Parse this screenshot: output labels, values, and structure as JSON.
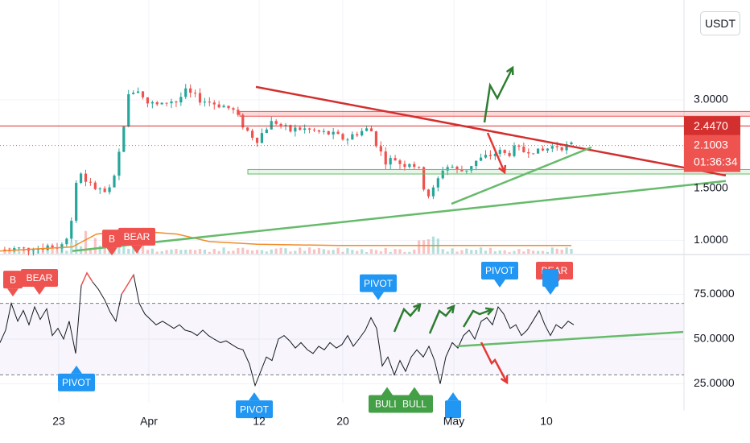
{
  "currency": "USDT",
  "colors": {
    "up": "#26a69a",
    "down": "#ef5350",
    "resistance": "#d32f2f",
    "support": "#66bb6a",
    "ma": "#f28c28",
    "pivot": "#2196f3",
    "bear": "#ef5350",
    "bull": "#43a047",
    "projection_up": "#2e7d32",
    "projection_down": "#e53935"
  },
  "chart_data": [
    {
      "type": "candlestick",
      "panel": "price",
      "y_axis_labels": [
        "3.0000",
        "1.5000",
        "1.0000"
      ],
      "x_axis_labels": [
        "23",
        "Apr",
        "12",
        "20",
        "May",
        "10"
      ],
      "price_tags": [
        {
          "label": "2.4470",
          "value": 2.447
        },
        {
          "label": "2.1003",
          "value": 2.1003,
          "countdown": "01:36:34"
        }
      ],
      "close_path": [
        [
          0.0,
          0.93
        ],
        [
          1.0,
          0.92
        ],
        [
          2.0,
          0.94
        ],
        [
          3.0,
          0.93
        ],
        [
          4.0,
          0.95
        ],
        [
          5.0,
          0.94
        ],
        [
          6.0,
          0.96
        ],
        [
          7.0,
          0.95
        ],
        [
          8.0,
          0.97
        ],
        [
          9.0,
          1.2
        ],
        [
          9.5,
          1.6
        ],
        [
          10.0,
          1.7
        ],
        [
          11.0,
          1.55
        ],
        [
          12.0,
          1.5
        ],
        [
          13.0,
          1.45
        ],
        [
          14.0,
          1.5
        ],
        [
          15.0,
          2.1
        ],
        [
          16.0,
          3.1
        ],
        [
          17.0,
          3.3
        ],
        [
          18.0,
          2.95
        ],
        [
          19.0,
          2.9
        ],
        [
          20.0,
          2.85
        ],
        [
          21.0,
          3.0
        ],
        [
          22.0,
          2.95
        ],
        [
          23.0,
          3.2
        ],
        [
          24.0,
          3.1
        ],
        [
          25.0,
          3.0
        ],
        [
          26.0,
          2.95
        ],
        [
          27.0,
          2.9
        ],
        [
          28.0,
          2.85
        ],
        [
          29.0,
          2.75
        ],
        [
          30.0,
          2.5
        ],
        [
          31.0,
          2.3
        ],
        [
          32.0,
          2.2
        ],
        [
          33.0,
          2.4
        ],
        [
          34.0,
          2.55
        ],
        [
          35.0,
          2.45
        ],
        [
          36.0,
          2.35
        ],
        [
          37.0,
          2.4
        ],
        [
          38.0,
          2.38
        ],
        [
          39.0,
          2.35
        ],
        [
          40.0,
          2.32
        ],
        [
          41.0,
          2.3
        ],
        [
          42.0,
          2.25
        ],
        [
          43.0,
          2.2
        ],
        [
          44.0,
          2.3
        ],
        [
          45.0,
          2.35
        ],
        [
          46.0,
          2.4
        ],
        [
          47.0,
          2.05
        ],
        [
          48.0,
          1.85
        ],
        [
          49.0,
          1.9
        ],
        [
          50.0,
          1.8
        ],
        [
          51.0,
          1.85
        ],
        [
          52.0,
          1.75
        ],
        [
          53.0,
          1.4
        ],
        [
          54.0,
          1.5
        ],
        [
          55.0,
          1.75
        ],
        [
          56.0,
          1.8
        ],
        [
          57.0,
          1.7
        ],
        [
          58.0,
          1.75
        ],
        [
          59.0,
          1.85
        ],
        [
          60.0,
          1.9
        ],
        [
          61.0,
          1.95
        ],
        [
          62.0,
          2.0
        ],
        [
          63.0,
          1.95
        ],
        [
          64.0,
          2.05
        ],
        [
          65.0,
          2.0
        ],
        [
          66.0,
          2.05
        ],
        [
          67.0,
          1.98
        ],
        [
          68.0,
          2.05
        ],
        [
          69.0,
          2.1
        ],
        [
          70.0,
          2.08
        ],
        [
          71.0,
          2.1003
        ]
      ],
      "ma_path": [
        [
          0.0,
          0.92
        ],
        [
          9.0,
          0.95
        ],
        [
          12.0,
          1.05
        ],
        [
          16.0,
          1.08
        ],
        [
          22.0,
          1.05
        ],
        [
          26.0,
          0.99
        ],
        [
          32.0,
          0.97
        ],
        [
          42.0,
          0.96
        ],
        [
          55.0,
          0.96
        ],
        [
          71.0,
          0.96
        ]
      ],
      "zones": [
        {
          "name": "resistance-zone",
          "x1": 29.8,
          "x2": 100.5,
          "y_low": 2.64,
          "y_high": 2.74
        },
        {
          "name": "support-zone",
          "x1": 30.8,
          "x2": 102.5,
          "y_low": 1.68,
          "y_high": 1.74
        }
      ],
      "lines": [
        {
          "name": "descending-trendline",
          "x1": 31.8,
          "y1": 3.32,
          "x2": 90.2,
          "y2": 1.66,
          "color": "resistance"
        },
        {
          "name": "ascending-trendline-long",
          "x1": 9.0,
          "y1": 0.92,
          "x2": 90.2,
          "y2": 1.59,
          "color": "support"
        },
        {
          "name": "ascending-trendline-short",
          "x1": 56.1,
          "y1": 1.33,
          "x2": 73.5,
          "y2": 2.07,
          "color": "support"
        },
        {
          "name": "horizontal-resistance-line",
          "x1": 0.0,
          "y1": 2.447,
          "x2": 101.7,
          "y2": 2.447,
          "color": "resistance"
        }
      ]
    },
    {
      "type": "line",
      "panel": "rsi",
      "y_axis_labels": [
        "75.0000",
        "50.0000",
        "25.0000"
      ],
      "levels": [
        70,
        30
      ],
      "series_path": [
        [
          0.0,
          48
        ],
        [
          0.7,
          55
        ],
        [
          1.4,
          70
        ],
        [
          2.2,
          60
        ],
        [
          2.9,
          66
        ],
        [
          3.6,
          58
        ],
        [
          4.3,
          68
        ],
        [
          5.0,
          61
        ],
        [
          5.8,
          67
        ],
        [
          6.5,
          52
        ],
        [
          7.2,
          56
        ],
        [
          7.9,
          50
        ],
        [
          8.6,
          60
        ],
        [
          9.4,
          42
        ],
        [
          10.1,
          80
        ],
        [
          10.8,
          87
        ],
        [
          11.5,
          82
        ],
        [
          12.2,
          78
        ],
        [
          13.0,
          72
        ],
        [
          13.7,
          65
        ],
        [
          14.4,
          60
        ],
        [
          15.1,
          75
        ],
        [
          15.8,
          80
        ],
        [
          16.6,
          86
        ],
        [
          17.3,
          70
        ],
        [
          18.0,
          64
        ],
        [
          18.7,
          61
        ],
        [
          19.4,
          58
        ],
        [
          20.2,
          60
        ],
        [
          20.9,
          58
        ],
        [
          21.6,
          56
        ],
        [
          22.3,
          58
        ],
        [
          23.0,
          55
        ],
        [
          23.8,
          54
        ],
        [
          24.5,
          52
        ],
        [
          25.2,
          55
        ],
        [
          25.9,
          52
        ],
        [
          26.6,
          50
        ],
        [
          27.4,
          48
        ],
        [
          28.1,
          49
        ],
        [
          28.8,
          47
        ],
        [
          29.5,
          45
        ],
        [
          30.2,
          44
        ],
        [
          31.0,
          36
        ],
        [
          31.7,
          24
        ],
        [
          32.4,
          32
        ],
        [
          33.1,
          40
        ],
        [
          33.8,
          38
        ],
        [
          34.6,
          50
        ],
        [
          35.3,
          52
        ],
        [
          36.0,
          49
        ],
        [
          36.7,
          45
        ],
        [
          37.4,
          48
        ],
        [
          38.2,
          44
        ],
        [
          38.9,
          42
        ],
        [
          39.6,
          46
        ],
        [
          40.3,
          44
        ],
        [
          41.0,
          48
        ],
        [
          41.8,
          45
        ],
        [
          42.5,
          47
        ],
        [
          43.2,
          52
        ],
        [
          43.9,
          46
        ],
        [
          44.6,
          50
        ],
        [
          45.4,
          55
        ],
        [
          46.1,
          62
        ],
        [
          46.8,
          56
        ],
        [
          47.5,
          35
        ],
        [
          48.2,
          40
        ],
        [
          49.0,
          30
        ],
        [
          49.7,
          38
        ],
        [
          50.4,
          32
        ],
        [
          51.1,
          40
        ],
        [
          51.8,
          44
        ],
        [
          52.6,
          40
        ],
        [
          53.3,
          46
        ],
        [
          54.0,
          38
        ],
        [
          54.7,
          25
        ],
        [
          55.4,
          40
        ],
        [
          56.2,
          48
        ],
        [
          56.9,
          45
        ],
        [
          57.6,
          52
        ],
        [
          58.3,
          55
        ],
        [
          59.0,
          50
        ],
        [
          59.8,
          60
        ],
        [
          60.5,
          62
        ],
        [
          61.2,
          58
        ],
        [
          61.9,
          68
        ],
        [
          62.6,
          64
        ],
        [
          63.4,
          56
        ],
        [
          64.1,
          58
        ],
        [
          64.8,
          52
        ],
        [
          65.5,
          55
        ],
        [
          66.2,
          60
        ],
        [
          67.0,
          66
        ],
        [
          67.7,
          58
        ],
        [
          68.4,
          52
        ],
        [
          69.1,
          58
        ],
        [
          69.8,
          56
        ],
        [
          70.6,
          60
        ],
        [
          71.3,
          58
        ]
      ],
      "lines": [
        {
          "name": "rsi-trendline",
          "x1": 56.8,
          "y1": 46,
          "x2": 84.9,
          "y2": 54,
          "color": "support"
        }
      ],
      "markers": [
        {
          "text": "B",
          "kind": "bear",
          "anchor": "below",
          "x": 1.6,
          "y": 72
        },
        {
          "text": "BEAR",
          "kind": "bear",
          "anchor": "below",
          "x": 4.9,
          "y": 73
        },
        {
          "text": "PIVOT",
          "kind": "pivot",
          "anchor": "above",
          "x": 9.5,
          "y": 37
        },
        {
          "text": "B",
          "kind": "bear",
          "anchor": "below",
          "x": 13.9,
          "y": 95
        },
        {
          "text": "BEAR",
          "kind": "bear",
          "anchor": "below",
          "x": 17.0,
          "y": 96
        },
        {
          "text": "PIVOT",
          "kind": "pivot",
          "anchor": "above",
          "x": 31.6,
          "y": 22
        },
        {
          "text": "PIVOT",
          "kind": "pivot",
          "anchor": "below",
          "x": 47.0,
          "y": 70
        },
        {
          "text": "BULL",
          "kind": "bull",
          "anchor": "above",
          "x": 48.1,
          "y": 25
        },
        {
          "text": "BULL",
          "kind": "bull",
          "anchor": "above",
          "x": 51.5,
          "y": 25
        },
        {
          "text": "",
          "kind": "pivot",
          "anchor": "above",
          "x": 56.3,
          "y": 22
        },
        {
          "text": "PIVOT",
          "kind": "pivot",
          "anchor": "below",
          "x": 62.1,
          "y": 77
        },
        {
          "text": "BEAR",
          "kind": "bear",
          "anchor": "below",
          "x": 68.9,
          "y": 77
        },
        {
          "text": "",
          "kind": "pivot",
          "anchor": "below",
          "x": 68.4,
          "y": 73
        }
      ]
    }
  ]
}
